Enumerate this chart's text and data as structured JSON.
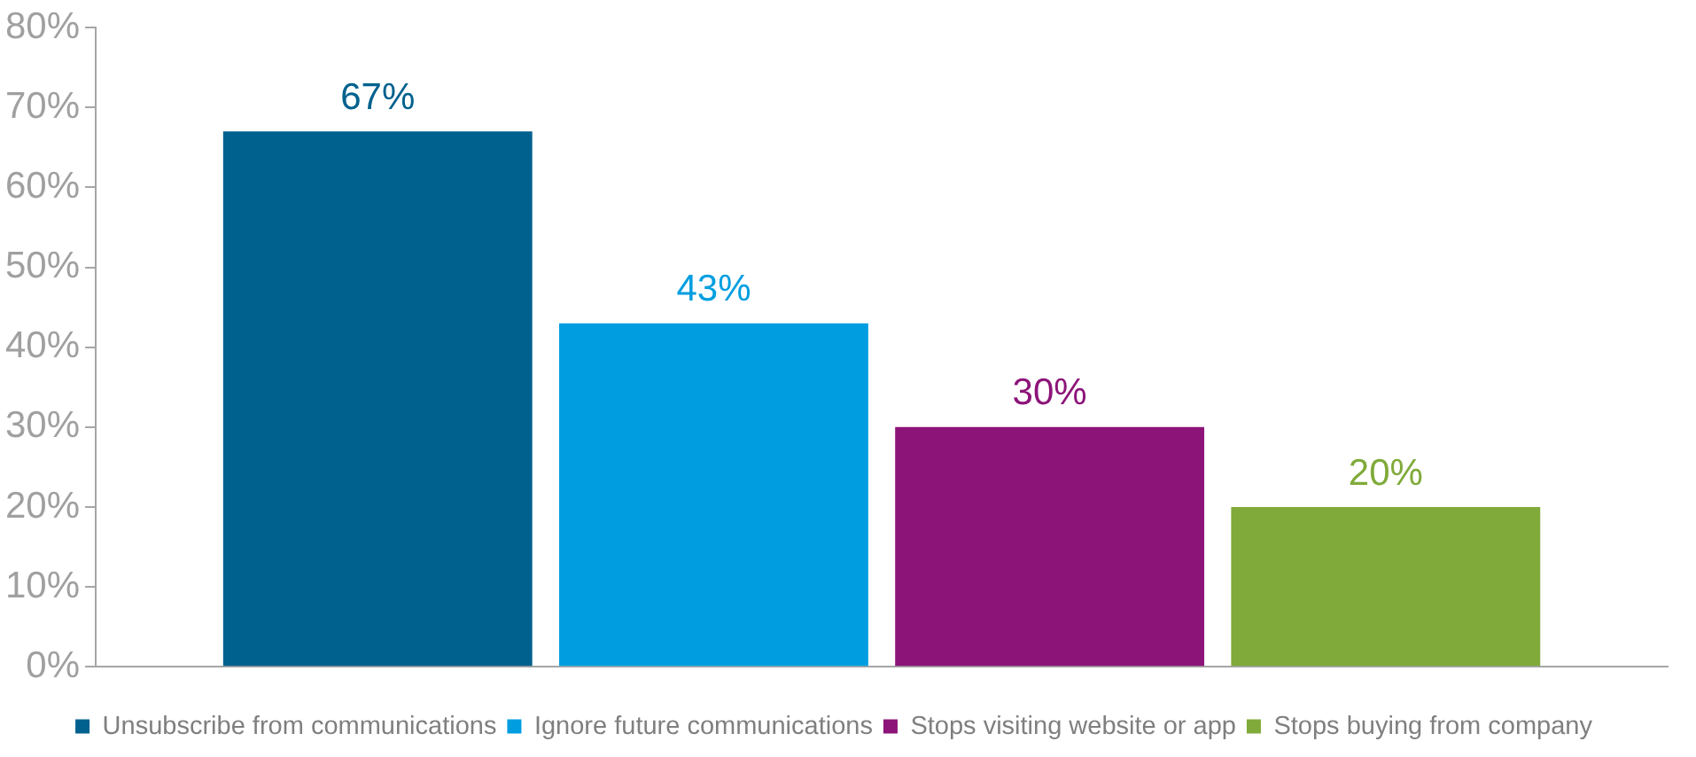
{
  "chart_data": {
    "type": "bar",
    "categories": [
      null
    ],
    "series": [
      {
        "name": "Unsubscribe from communications",
        "color": "#00618e",
        "values": [
          67
        ],
        "value_labels": [
          "67%"
        ]
      },
      {
        "name": "Ignore future communications",
        "color": "#009ee0",
        "values": [
          43
        ],
        "value_labels": [
          "43%"
        ]
      },
      {
        "name": "Stops visiting website or app",
        "color": "#8c1479",
        "values": [
          30
        ],
        "value_labels": [
          "30%"
        ]
      },
      {
        "name": "Stops buying from company",
        "color": "#80aa3a",
        "values": [
          20
        ],
        "value_labels": [
          "20%"
        ]
      }
    ],
    "ylim": [
      0,
      80
    ],
    "yticks": [
      {
        "value": 0,
        "label": "0%"
      },
      {
        "value": 10,
        "label": "10%"
      },
      {
        "value": 20,
        "label": "20%"
      },
      {
        "value": 30,
        "label": "30%"
      },
      {
        "value": 40,
        "label": "40%"
      },
      {
        "value": 50,
        "label": "50%"
      },
      {
        "value": 60,
        "label": "60%"
      },
      {
        "value": 70,
        "label": "70%"
      },
      {
        "value": 80,
        "label": "80%"
      }
    ],
    "grid": false,
    "legend": "bottom"
  }
}
